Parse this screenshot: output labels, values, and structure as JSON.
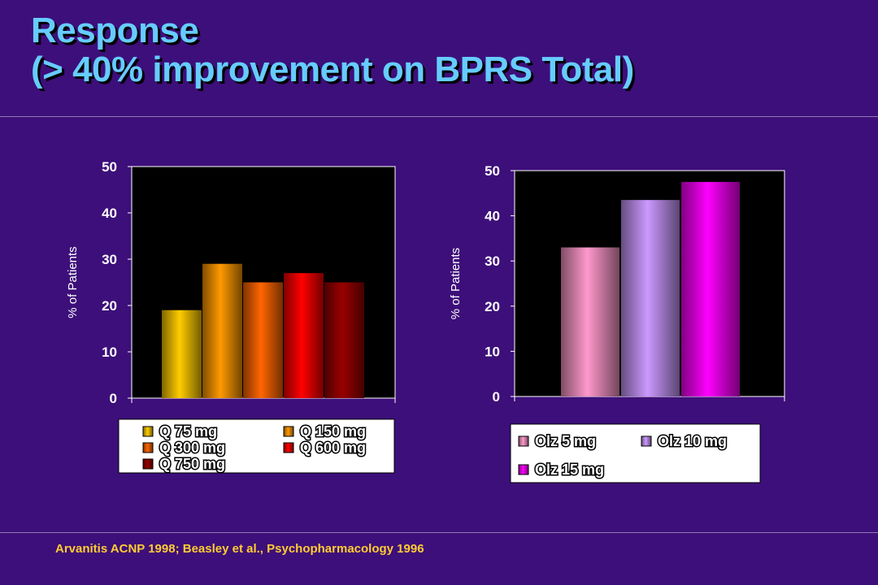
{
  "title": {
    "line1": "Response",
    "line2": "(> 40% improvement on BPRS Total)"
  },
  "citation": "Arvanitis ACNP 1998; Beasley et al., Psychopharmacology 1996",
  "chart_data": [
    {
      "type": "bar",
      "title": "",
      "xlabel": "",
      "ylabel": "% of Patients",
      "ylim": [
        0,
        50
      ],
      "yticks": [
        "0",
        "10",
        "20",
        "30",
        "40",
        "50"
      ],
      "grid": false,
      "legend_position": "bottom",
      "series": [
        {
          "name": "Q 75 mg",
          "values": [
            19
          ],
          "color": "#ffcc00"
        },
        {
          "name": "Q 150 mg",
          "values": [
            29
          ],
          "color": "#ff9900"
        },
        {
          "name": "Q 300 mg",
          "values": [
            25
          ],
          "color": "#ff6600"
        },
        {
          "name": "Q 600 mg",
          "values": [
            27
          ],
          "color": "#ff0000"
        },
        {
          "name": "Q 750 mg",
          "values": [
            25
          ],
          "color": "#990000"
        }
      ]
    },
    {
      "type": "bar",
      "title": "",
      "xlabel": "",
      "ylabel": "% of Patients",
      "ylim": [
        0,
        50
      ],
      "yticks": [
        "0",
        "10",
        "20",
        "30",
        "40",
        "50"
      ],
      "grid": false,
      "legend_position": "bottom",
      "series": [
        {
          "name": "Olz 5 mg",
          "values": [
            33
          ],
          "color": "#ff99cc"
        },
        {
          "name": "Olz 10 mg",
          "values": [
            43.5
          ],
          "color": "#cc99ff"
        },
        {
          "name": "Olz 15 mg",
          "values": [
            47.5
          ],
          "color": "#ff00ff"
        }
      ]
    }
  ]
}
